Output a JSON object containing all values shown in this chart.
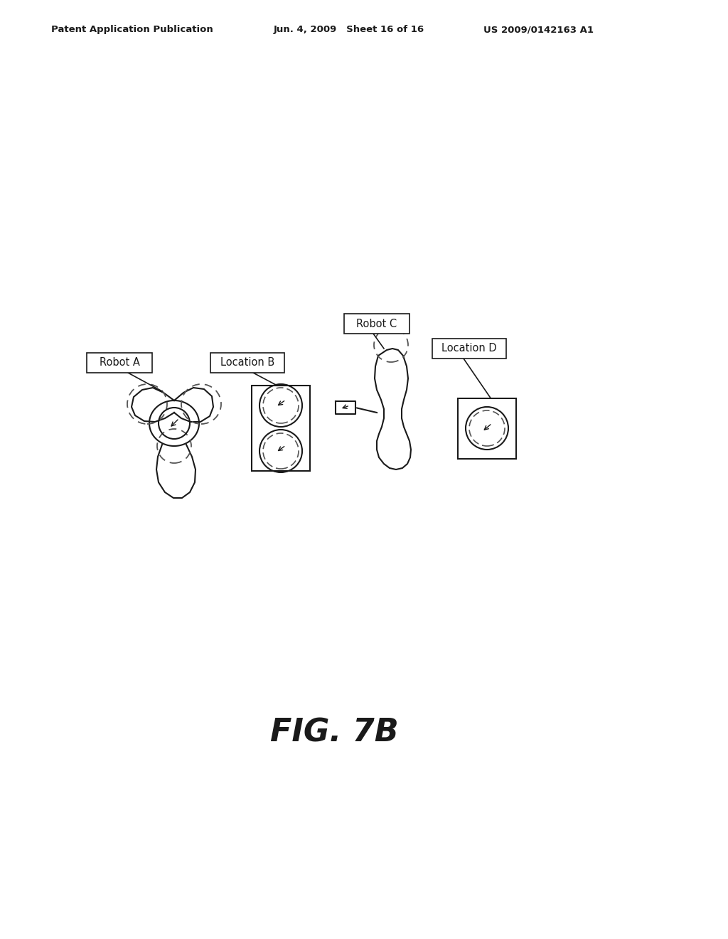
{
  "header_left": "Patent Application Publication",
  "header_mid": "Jun. 4, 2009   Sheet 16 of 16",
  "header_right": "US 2009/0142163 A1",
  "figure_label": "FIG. 7B",
  "label_robot_a": "Robot A",
  "label_location_b": "Location B",
  "label_robot_c": "Robot C",
  "label_location_d": "Location D",
  "bg_color": "#ffffff",
  "line_color": "#1a1a1a",
  "dashed_color": "#555555"
}
